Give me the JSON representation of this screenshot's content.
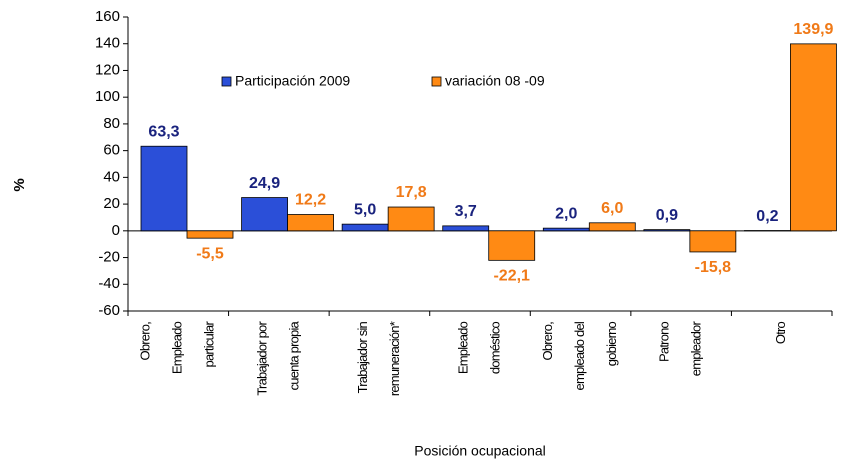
{
  "chart_data": {
    "type": "bar",
    "x_label": "Posición ocupacional",
    "y_label": "%",
    "categories": [
      [
        "Obrero,",
        "Empleado",
        "particular"
      ],
      [
        "Trabajador por",
        "cuenta propia"
      ],
      [
        "Trabajador sin",
        "remuneración*"
      ],
      [
        "Empleado",
        "doméstico"
      ],
      [
        "Obrero,",
        "empleado del",
        "gobierno"
      ],
      [
        "Patrono",
        "empleador"
      ],
      [
        "Otro"
      ]
    ],
    "series": [
      {
        "name": "Participación 2009",
        "color": "#2b4fd8",
        "label_color": "#1a237e",
        "values": [
          63.3,
          24.9,
          5.0,
          3.7,
          2.0,
          0.9,
          0.2
        ],
        "value_labels": [
          "63,3",
          "24,9",
          "5,0",
          "3,7",
          "2,0",
          "0,9",
          "0,2"
        ]
      },
      {
        "name": "variación 08 -09",
        "color": "#ff8a14",
        "label_color": "#f07a18",
        "values": [
          -5.5,
          12.2,
          17.8,
          -22.1,
          6.0,
          -15.8,
          139.9
        ],
        "value_labels": [
          "-5,5",
          "12,2",
          "17,8",
          "-22,1",
          "6,0",
          "-15,8",
          "139,9"
        ]
      }
    ],
    "ylim": [
      -60,
      160
    ],
    "yticks": [
      -60,
      -40,
      -20,
      0,
      20,
      40,
      60,
      80,
      100,
      120,
      140,
      160
    ],
    "grid": false
  }
}
